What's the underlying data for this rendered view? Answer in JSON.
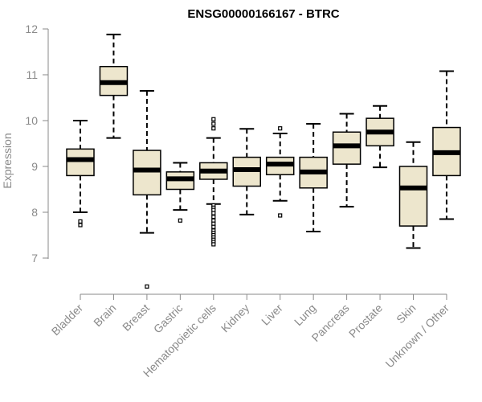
{
  "chart_data": {
    "type": "boxplot",
    "title": "ENSG00000166167 - BTRC",
    "ylabel": "Expression",
    "xlabel": "",
    "ylim": [
      6.3,
      12.1
    ],
    "yticks": [
      7,
      8,
      9,
      10,
      11,
      12
    ],
    "grid": false,
    "colors": {
      "box_fill": "#ede6cd",
      "box_stroke": "#000000",
      "axis": "#8a8a8a"
    },
    "categories": [
      "Bladder",
      "Brain",
      "Breast",
      "Gastric",
      "Hematopoietic cells",
      "Kidney",
      "Liver",
      "Lung",
      "Pancreas",
      "Prostate",
      "Skin",
      "Unknown / Other"
    ],
    "boxes": [
      {
        "name": "Bladder",
        "whisker_low": 8.0,
        "q1": 8.8,
        "median": 9.15,
        "q3": 9.38,
        "whisker_high": 10.0,
        "outliers": [
          7.72,
          7.8
        ]
      },
      {
        "name": "Brain",
        "whisker_low": 9.62,
        "q1": 10.55,
        "median": 10.83,
        "q3": 11.18,
        "whisker_high": 11.88,
        "outliers": []
      },
      {
        "name": "Breast",
        "whisker_low": 7.55,
        "q1": 8.38,
        "median": 8.92,
        "q3": 9.35,
        "whisker_high": 10.65,
        "outliers": [
          6.38
        ]
      },
      {
        "name": "Gastric",
        "whisker_low": 8.05,
        "q1": 8.5,
        "median": 8.73,
        "q3": 8.88,
        "whisker_high": 9.08,
        "outliers": [
          7.82
        ]
      },
      {
        "name": "Hematopoietic cells",
        "whisker_low": 8.18,
        "q1": 8.72,
        "median": 8.9,
        "q3": 9.08,
        "whisker_high": 9.62,
        "outliers": [
          9.83,
          9.93,
          10.03,
          8.15,
          8.1,
          8.05,
          7.98,
          7.9,
          7.82,
          7.75,
          7.68,
          7.6,
          7.55,
          7.5,
          7.45,
          7.4,
          7.35,
          7.3
        ]
      },
      {
        "name": "Kidney",
        "whisker_low": 7.95,
        "q1": 8.57,
        "median": 8.93,
        "q3": 9.2,
        "whisker_high": 9.82,
        "outliers": []
      },
      {
        "name": "Liver",
        "whisker_low": 8.25,
        "q1": 8.82,
        "median": 9.05,
        "q3": 9.2,
        "whisker_high": 9.72,
        "outliers": [
          9.83,
          7.93
        ]
      },
      {
        "name": "Lung",
        "whisker_low": 7.58,
        "q1": 8.53,
        "median": 8.88,
        "q3": 9.2,
        "whisker_high": 9.93,
        "outliers": []
      },
      {
        "name": "Pancreas",
        "whisker_low": 8.12,
        "q1": 9.05,
        "median": 9.45,
        "q3": 9.75,
        "whisker_high": 10.15,
        "outliers": []
      },
      {
        "name": "Prostate",
        "whisker_low": 8.98,
        "q1": 9.45,
        "median": 9.75,
        "q3": 10.05,
        "whisker_high": 10.32,
        "outliers": []
      },
      {
        "name": "Skin",
        "whisker_low": 7.22,
        "q1": 7.7,
        "median": 8.53,
        "q3": 9.0,
        "whisker_high": 9.53,
        "outliers": []
      },
      {
        "name": "Unknown / Other",
        "whisker_low": 7.85,
        "q1": 8.8,
        "median": 9.3,
        "q3": 9.85,
        "whisker_high": 11.08,
        "outliers": []
      }
    ]
  }
}
